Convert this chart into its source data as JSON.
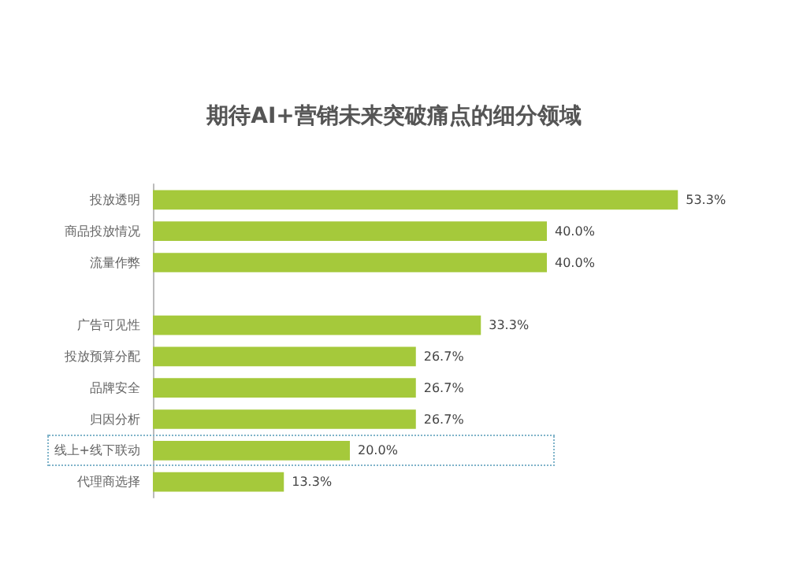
{
  "chart_data": {
    "type": "bar",
    "orientation": "horizontal",
    "title": "期待AI+营销未来突破痛点的细分领域",
    "categories": [
      "投放透明",
      "商品投放情况",
      "流量作弊",
      null,
      "广告可见性",
      "投放预算分配",
      "品牌安全",
      "归因分析",
      "线上+线下联动",
      "代理商选择"
    ],
    "values": [
      53.3,
      40.0,
      40.0,
      null,
      33.3,
      26.7,
      26.7,
      26.7,
      20.0,
      13.3
    ],
    "value_labels": [
      "53.3%",
      "40.0%",
      "40.0%",
      null,
      "33.3%",
      "26.7%",
      "26.7%",
      "26.7%",
      "20.0%",
      "13.3%"
    ],
    "color": "#a5c93b"
  }
}
